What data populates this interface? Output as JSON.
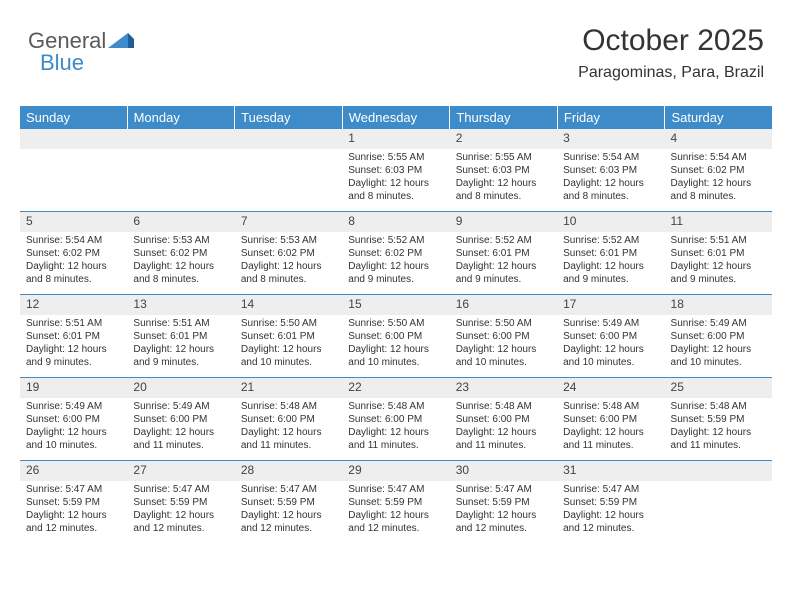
{
  "logo": {
    "part1": "General",
    "part2": "Blue"
  },
  "title": "October 2025",
  "subtitle": "Paragominas, Para, Brazil",
  "colors": {
    "header_bg": "#3d8bc9",
    "header_text": "#ffffff",
    "daynum_bg": "#eeeeee",
    "border": "#3d8bc9",
    "text": "#333333",
    "logo_gray": "#5a5a5a",
    "logo_blue": "#3d8bc9"
  },
  "day_headers": [
    "Sunday",
    "Monday",
    "Tuesday",
    "Wednesday",
    "Thursday",
    "Friday",
    "Saturday"
  ],
  "weeks": [
    [
      {
        "n": "",
        "sunrise": "",
        "sunset": "",
        "daylight": ""
      },
      {
        "n": "",
        "sunrise": "",
        "sunset": "",
        "daylight": ""
      },
      {
        "n": "",
        "sunrise": "",
        "sunset": "",
        "daylight": ""
      },
      {
        "n": "1",
        "sunrise": "Sunrise: 5:55 AM",
        "sunset": "Sunset: 6:03 PM",
        "daylight": "Daylight: 12 hours and 8 minutes."
      },
      {
        "n": "2",
        "sunrise": "Sunrise: 5:55 AM",
        "sunset": "Sunset: 6:03 PM",
        "daylight": "Daylight: 12 hours and 8 minutes."
      },
      {
        "n": "3",
        "sunrise": "Sunrise: 5:54 AM",
        "sunset": "Sunset: 6:03 PM",
        "daylight": "Daylight: 12 hours and 8 minutes."
      },
      {
        "n": "4",
        "sunrise": "Sunrise: 5:54 AM",
        "sunset": "Sunset: 6:02 PM",
        "daylight": "Daylight: 12 hours and 8 minutes."
      }
    ],
    [
      {
        "n": "5",
        "sunrise": "Sunrise: 5:54 AM",
        "sunset": "Sunset: 6:02 PM",
        "daylight": "Daylight: 12 hours and 8 minutes."
      },
      {
        "n": "6",
        "sunrise": "Sunrise: 5:53 AM",
        "sunset": "Sunset: 6:02 PM",
        "daylight": "Daylight: 12 hours and 8 minutes."
      },
      {
        "n": "7",
        "sunrise": "Sunrise: 5:53 AM",
        "sunset": "Sunset: 6:02 PM",
        "daylight": "Daylight: 12 hours and 8 minutes."
      },
      {
        "n": "8",
        "sunrise": "Sunrise: 5:52 AM",
        "sunset": "Sunset: 6:02 PM",
        "daylight": "Daylight: 12 hours and 9 minutes."
      },
      {
        "n": "9",
        "sunrise": "Sunrise: 5:52 AM",
        "sunset": "Sunset: 6:01 PM",
        "daylight": "Daylight: 12 hours and 9 minutes."
      },
      {
        "n": "10",
        "sunrise": "Sunrise: 5:52 AM",
        "sunset": "Sunset: 6:01 PM",
        "daylight": "Daylight: 12 hours and 9 minutes."
      },
      {
        "n": "11",
        "sunrise": "Sunrise: 5:51 AM",
        "sunset": "Sunset: 6:01 PM",
        "daylight": "Daylight: 12 hours and 9 minutes."
      }
    ],
    [
      {
        "n": "12",
        "sunrise": "Sunrise: 5:51 AM",
        "sunset": "Sunset: 6:01 PM",
        "daylight": "Daylight: 12 hours and 9 minutes."
      },
      {
        "n": "13",
        "sunrise": "Sunrise: 5:51 AM",
        "sunset": "Sunset: 6:01 PM",
        "daylight": "Daylight: 12 hours and 9 minutes."
      },
      {
        "n": "14",
        "sunrise": "Sunrise: 5:50 AM",
        "sunset": "Sunset: 6:01 PM",
        "daylight": "Daylight: 12 hours and 10 minutes."
      },
      {
        "n": "15",
        "sunrise": "Sunrise: 5:50 AM",
        "sunset": "Sunset: 6:00 PM",
        "daylight": "Daylight: 12 hours and 10 minutes."
      },
      {
        "n": "16",
        "sunrise": "Sunrise: 5:50 AM",
        "sunset": "Sunset: 6:00 PM",
        "daylight": "Daylight: 12 hours and 10 minutes."
      },
      {
        "n": "17",
        "sunrise": "Sunrise: 5:49 AM",
        "sunset": "Sunset: 6:00 PM",
        "daylight": "Daylight: 12 hours and 10 minutes."
      },
      {
        "n": "18",
        "sunrise": "Sunrise: 5:49 AM",
        "sunset": "Sunset: 6:00 PM",
        "daylight": "Daylight: 12 hours and 10 minutes."
      }
    ],
    [
      {
        "n": "19",
        "sunrise": "Sunrise: 5:49 AM",
        "sunset": "Sunset: 6:00 PM",
        "daylight": "Daylight: 12 hours and 10 minutes."
      },
      {
        "n": "20",
        "sunrise": "Sunrise: 5:49 AM",
        "sunset": "Sunset: 6:00 PM",
        "daylight": "Daylight: 12 hours and 11 minutes."
      },
      {
        "n": "21",
        "sunrise": "Sunrise: 5:48 AM",
        "sunset": "Sunset: 6:00 PM",
        "daylight": "Daylight: 12 hours and 11 minutes."
      },
      {
        "n": "22",
        "sunrise": "Sunrise: 5:48 AM",
        "sunset": "Sunset: 6:00 PM",
        "daylight": "Daylight: 12 hours and 11 minutes."
      },
      {
        "n": "23",
        "sunrise": "Sunrise: 5:48 AM",
        "sunset": "Sunset: 6:00 PM",
        "daylight": "Daylight: 12 hours and 11 minutes."
      },
      {
        "n": "24",
        "sunrise": "Sunrise: 5:48 AM",
        "sunset": "Sunset: 6:00 PM",
        "daylight": "Daylight: 12 hours and 11 minutes."
      },
      {
        "n": "25",
        "sunrise": "Sunrise: 5:48 AM",
        "sunset": "Sunset: 5:59 PM",
        "daylight": "Daylight: 12 hours and 11 minutes."
      }
    ],
    [
      {
        "n": "26",
        "sunrise": "Sunrise: 5:47 AM",
        "sunset": "Sunset: 5:59 PM",
        "daylight": "Daylight: 12 hours and 12 minutes."
      },
      {
        "n": "27",
        "sunrise": "Sunrise: 5:47 AM",
        "sunset": "Sunset: 5:59 PM",
        "daylight": "Daylight: 12 hours and 12 minutes."
      },
      {
        "n": "28",
        "sunrise": "Sunrise: 5:47 AM",
        "sunset": "Sunset: 5:59 PM",
        "daylight": "Daylight: 12 hours and 12 minutes."
      },
      {
        "n": "29",
        "sunrise": "Sunrise: 5:47 AM",
        "sunset": "Sunset: 5:59 PM",
        "daylight": "Daylight: 12 hours and 12 minutes."
      },
      {
        "n": "30",
        "sunrise": "Sunrise: 5:47 AM",
        "sunset": "Sunset: 5:59 PM",
        "daylight": "Daylight: 12 hours and 12 minutes."
      },
      {
        "n": "31",
        "sunrise": "Sunrise: 5:47 AM",
        "sunset": "Sunset: 5:59 PM",
        "daylight": "Daylight: 12 hours and 12 minutes."
      },
      {
        "n": "",
        "sunrise": "",
        "sunset": "",
        "daylight": ""
      }
    ]
  ]
}
